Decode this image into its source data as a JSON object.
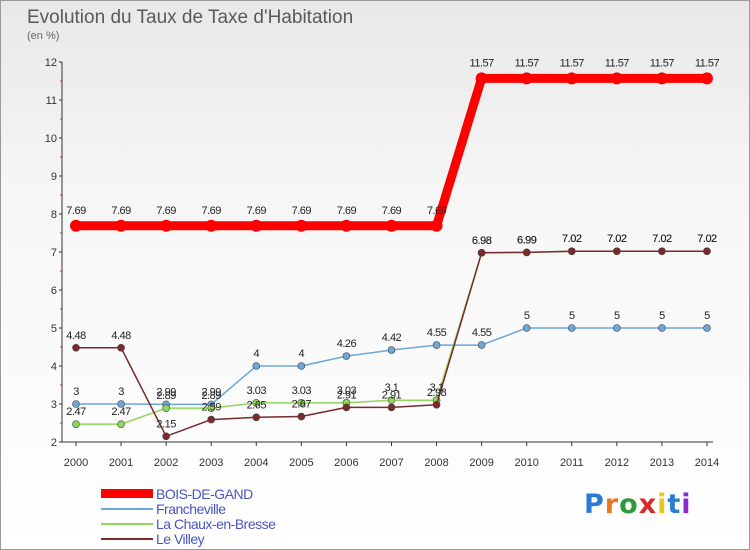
{
  "title": "Evolution du Taux de Taxe d'Habitation",
  "subtitle": "(en %)",
  "logo": {
    "text": "Proxiti",
    "colors": [
      "#2a7bd4",
      "#e8781e",
      "#2a9a3a",
      "#d42a2a",
      "#e8c81e",
      "#2a7bd4",
      "#8a2ad4"
    ]
  },
  "chart_data": {
    "type": "line",
    "x": [
      "2000",
      "2001",
      "2002",
      "2003",
      "2004",
      "2005",
      "2006",
      "2007",
      "2008",
      "2009",
      "2010",
      "2011",
      "2012",
      "2013",
      "2014"
    ],
    "ylim": [
      2,
      12
    ],
    "yticks": [
      "2",
      "3",
      "4",
      "5",
      "6",
      "7",
      "8",
      "9",
      "10",
      "11",
      "12"
    ],
    "grid": false,
    "legend_position": "bottom-left",
    "series": [
      {
        "name": "BOIS-DE-GAND",
        "color": "#ff0000",
        "values": [
          7.69,
          7.69,
          7.69,
          7.69,
          7.69,
          7.69,
          7.69,
          7.69,
          7.69,
          11.57,
          11.57,
          11.57,
          11.57,
          11.57,
          11.57
        ],
        "labels": [
          "7.69",
          "7.69",
          "7.69",
          "7.69",
          "7.69",
          "7.69",
          "7.69",
          "7.69",
          "7.69",
          "11.57",
          "11.57",
          "11.57",
          "11.57",
          "11.57",
          "11.57"
        ]
      },
      {
        "name": "Francheville",
        "color": "#6ea6d6",
        "values": [
          3,
          3,
          2.99,
          2.99,
          4,
          4,
          4.26,
          4.42,
          4.55,
          4.55,
          5,
          5,
          5,
          5,
          5
        ],
        "labels": [
          "3",
          "3",
          "2.99",
          "2.99",
          "4",
          "4",
          "4.26",
          "4.42",
          "4.55",
          "4.55",
          "5",
          "5",
          "5",
          "5",
          "5"
        ]
      },
      {
        "name": "La Chaux-en-Bresse",
        "color": "#8fd65a",
        "values": [
          2.47,
          2.47,
          2.89,
          2.89,
          3.03,
          3.03,
          3.03,
          3.1,
          3.1,
          6.98,
          6.99,
          7.02,
          7.02,
          7.02,
          7.02
        ],
        "labels": [
          "2.47",
          "2.47",
          "2.89",
          "2.89",
          "3.03",
          "3.03",
          "3.03",
          "3.1",
          "3.1",
          "6.98",
          "6.99",
          "7.02",
          "7.02",
          "7.02",
          "7.02"
        ]
      },
      {
        "name": "Le Villey",
        "color": "#7a2a2a",
        "values": [
          4.48,
          4.48,
          2.15,
          2.59,
          2.65,
          2.67,
          2.91,
          2.91,
          2.98,
          6.98,
          6.99,
          7.02,
          7.02,
          7.02,
          7.02
        ],
        "labels": [
          "4.48",
          "4.48",
          "2.15",
          "2.59",
          "2.65",
          "2.67",
          "2.91",
          "2.91",
          "2.98",
          "6.98",
          "6.99",
          "7.02",
          "7.02",
          "7.02",
          "7.02"
        ]
      }
    ]
  }
}
